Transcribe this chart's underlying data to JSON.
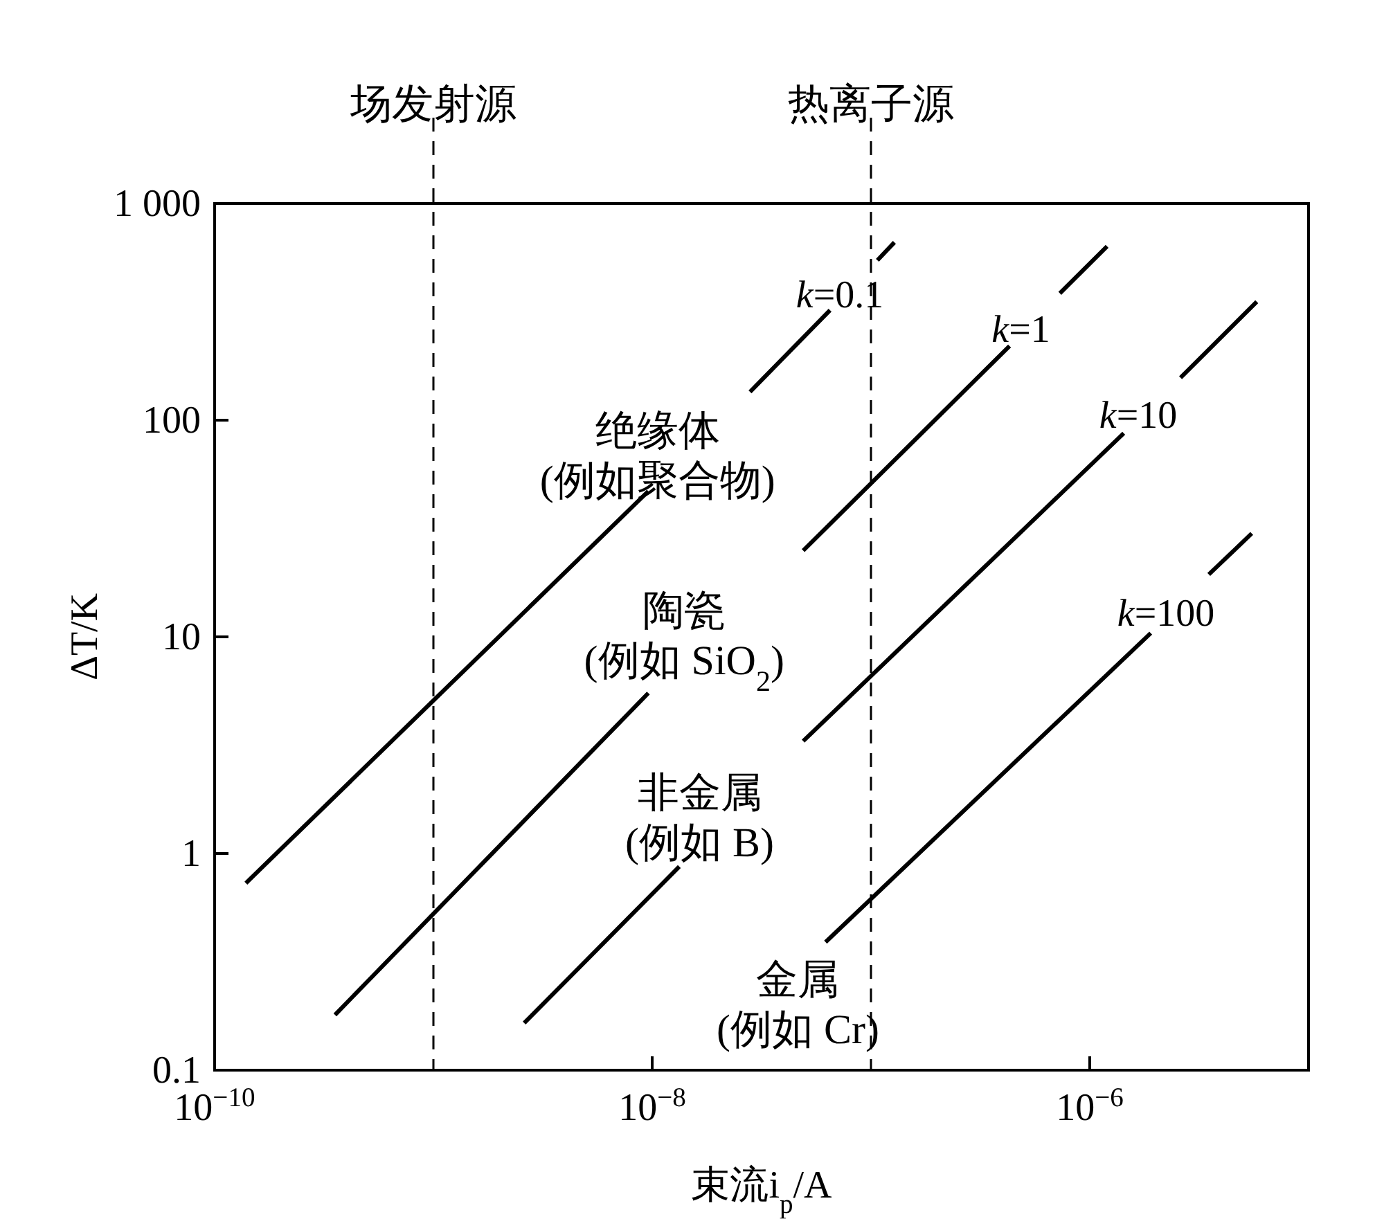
{
  "chart_data": {
    "type": "line",
    "xlabel": "束流i$_{p}$/A",
    "ylabel": "ΔT/K",
    "log": "xy",
    "grid": false,
    "marker": "none",
    "line_style": "solid",
    "xlim": [
      1e-10,
      1e-05
    ],
    "ylim": [
      0.1,
      1000
    ],
    "xticks": [
      {
        "value": 1e-10,
        "label": "10$^{−10}$"
      },
      {
        "value": 1e-08,
        "label": "10$^{−8}$"
      },
      {
        "value": 1e-06,
        "label": "10$^{−6}$"
      }
    ],
    "yticks": [
      0.1,
      1,
      10,
      100,
      {
        "value": 1000,
        "label": "1 000"
      }
    ],
    "ref_lines": [
      {
        "axis": "x",
        "value": 1e-09,
        "label": "场发射源",
        "color": "#000000",
        "line_style": "dashed"
      },
      {
        "axis": "x",
        "value": 1e-07,
        "label": "热离子源",
        "color": "#000000",
        "line_style": "dashed"
      }
    ],
    "series": [
      {
        "name": "k=0.1",
        "color": "#000000",
        "x": [
          1.39e-10,
          9.6e-09,
          null,
          2.8e-08,
          6.5e-08,
          null,
          1.07e-07,
          1.28e-07
        ],
        "values": [
          0.73,
          47,
          null,
          135,
          322,
          null,
          547,
          662
        ]
      },
      {
        "name": "k=1",
        "color": "#000000",
        "x": [
          3.55e-10,
          9.6e-09,
          null,
          4.9e-08,
          4.3e-07,
          null,
          7.3e-07,
          1.2e-06
        ],
        "values": [
          0.18,
          5.5,
          null,
          25,
          220,
          null,
          385,
          634
        ]
      },
      {
        "name": "k=10",
        "color": "#000000",
        "x": [
          2.6e-09,
          1.33e-08,
          null,
          4.9e-08,
          1.43e-06,
          null,
          2.6e-06,
          5.8e-06
        ],
        "values": [
          0.165,
          0.87,
          null,
          3.3,
          87,
          null,
          157,
          352
        ]
      },
      {
        "name": "k=100",
        "color": "#000000",
        "x": [
          6.2e-08,
          1.9e-06,
          null,
          3.5e-06,
          5.5e-06
        ],
        "values": [
          0.39,
          10.4,
          null,
          19.4,
          30
        ]
      }
    ],
    "annotations": [
      "绝缘体\n(例如聚合物)",
      "陶瓷\n(例如 SiO$_{2}$)",
      "非金属\n(例如 B)",
      "金属\n(例如 Cr)"
    ]
  }
}
